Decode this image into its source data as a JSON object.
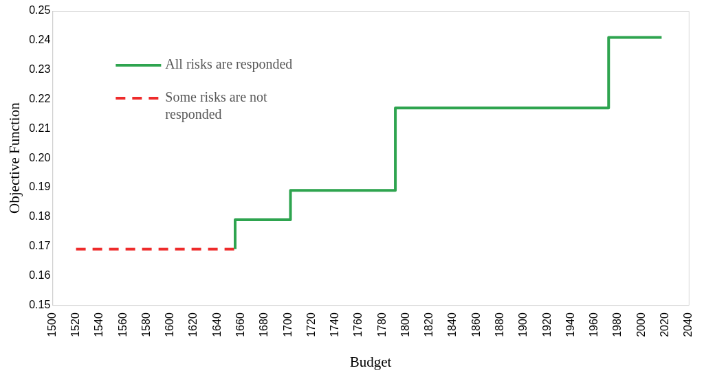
{
  "chart_data": {
    "type": "step",
    "xlabel": "Budget",
    "ylabel": "Objective Function",
    "series": [
      {
        "name": "All risks are responded",
        "color": "#2ea44f",
        "line_style": "solid",
        "x": [
          1655,
          1655,
          1702,
          1791,
          1972,
          2017
        ],
        "values": [
          0.169,
          0.179,
          0.189,
          0.217,
          0.241,
          0.241
        ]
      },
      {
        "name": "Some risks are not responded",
        "color": "#ee2b2b",
        "line_style": "dashed",
        "x": [
          1520,
          1655
        ],
        "values": [
          0.169,
          0.169
        ]
      }
    ],
    "xlim": [
      1500,
      2040
    ],
    "xticks": [
      1500,
      1520,
      1540,
      1560,
      1580,
      1600,
      1620,
      1640,
      1660,
      1680,
      1700,
      1720,
      1740,
      1760,
      1780,
      1800,
      1820,
      1840,
      1860,
      1880,
      1900,
      1920,
      1940,
      1960,
      1980,
      2000,
      2020,
      2040
    ],
    "ylim": [
      0.15,
      0.25
    ],
    "yticks": [
      0.15,
      0.16,
      0.17,
      0.18,
      0.19,
      {
        "value": 0.2,
        "label": "0.20"
      },
      0.21,
      0.22,
      0.23,
      0.24,
      0.25
    ],
    "grid": false,
    "legend": "top left",
    "marker": "none"
  }
}
